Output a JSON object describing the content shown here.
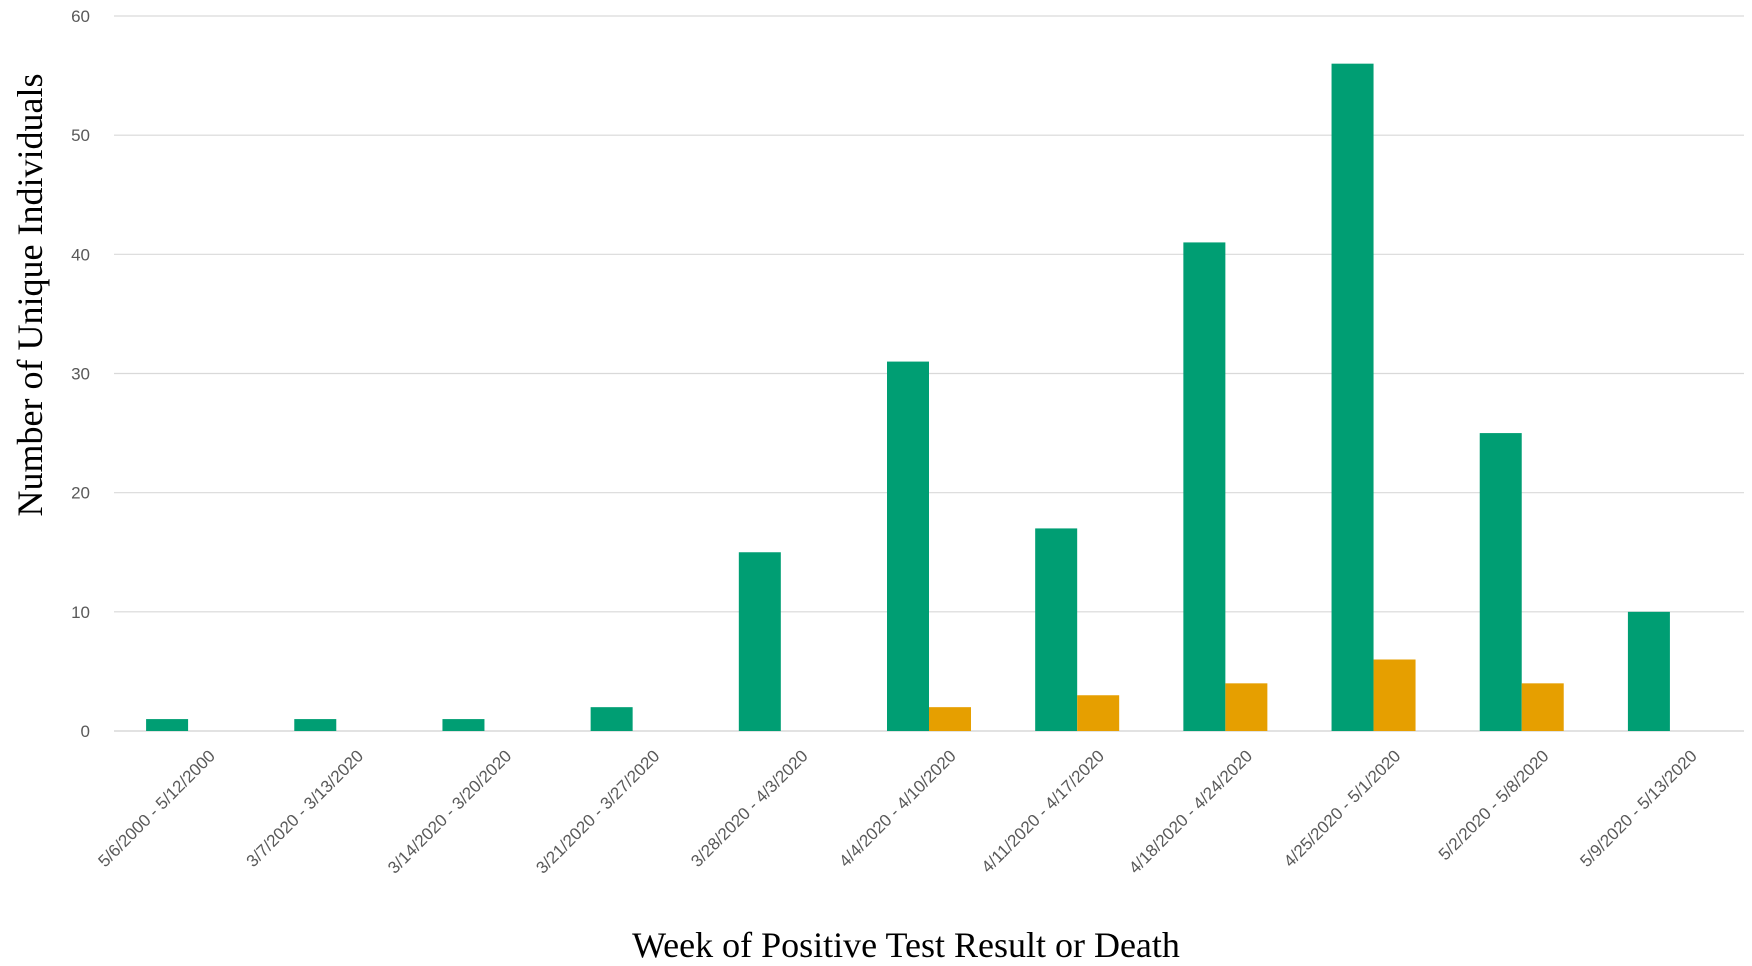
{
  "chart_data": {
    "type": "bar",
    "title": "",
    "xlabel": "Week of Positive Test Result or Death",
    "ylabel": "Number of Unique Individuals",
    "ylim": [
      0,
      60
    ],
    "yticks": [
      "0",
      "10",
      "20",
      "30",
      "40",
      "50",
      "60"
    ],
    "grid": true,
    "legend": "none",
    "categories": [
      "5/6/2000 - 5/12/2000",
      "3/7/2020 - 3/13/2020",
      "3/14/2020 - 3/20/2020",
      "3/21/2020 - 3/27/2020",
      "3/28/2020 - 4/3/2020",
      "4/4/2020 - 4/10/2020",
      "4/11/2020 - 4/17/2020",
      "4/18/2020 - 4/24/2020",
      "4/25/2020 - 5/1/2020",
      "5/2/2020 - 5/8/2020",
      "5/9/2020 - 5/13/2020"
    ],
    "series": [
      {
        "color": "#009E73",
        "values": [
          1,
          1,
          1,
          2,
          15,
          31,
          17,
          41,
          56,
          25,
          10
        ]
      },
      {
        "color": "#E69F00",
        "values": [
          0,
          0,
          0,
          0,
          0,
          2,
          3,
          4,
          6,
          4,
          0
        ]
      }
    ],
    "gridline_color": "#d9d9d9"
  }
}
